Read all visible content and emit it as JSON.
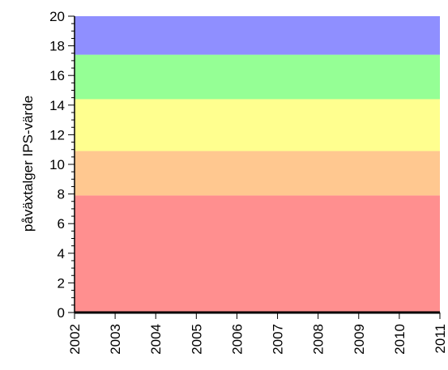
{
  "chart_data": {
    "type": "area",
    "title": "",
    "xlabel": "",
    "ylabel": "påväxtalger IPS-värde",
    "xlim": [
      2002,
      2011
    ],
    "ylim": [
      0,
      20
    ],
    "x_ticks": [
      "2002",
      "2003",
      "2004",
      "2005",
      "2006",
      "2007",
      "2008",
      "2009",
      "2010",
      "2011"
    ],
    "y_ticks": [
      "0",
      "2",
      "4",
      "6",
      "8",
      "10",
      "12",
      "14",
      "16",
      "18",
      "20"
    ],
    "grid": false,
    "legend": "none",
    "bands": [
      {
        "from": 0,
        "to": 7.9,
        "color": "#ff8f8f"
      },
      {
        "from": 7.9,
        "to": 10.9,
        "color": "#ffc890"
      },
      {
        "from": 10.9,
        "to": 14.4,
        "color": "#ffff8f"
      },
      {
        "from": 14.4,
        "to": 17.4,
        "color": "#95ff95"
      },
      {
        "from": 17.4,
        "to": 20,
        "color": "#8f8fff"
      }
    ],
    "series": [
      {
        "x": [
          2002,
          2011
        ],
        "values": [
          0,
          0
        ],
        "color": "#000000"
      }
    ]
  }
}
